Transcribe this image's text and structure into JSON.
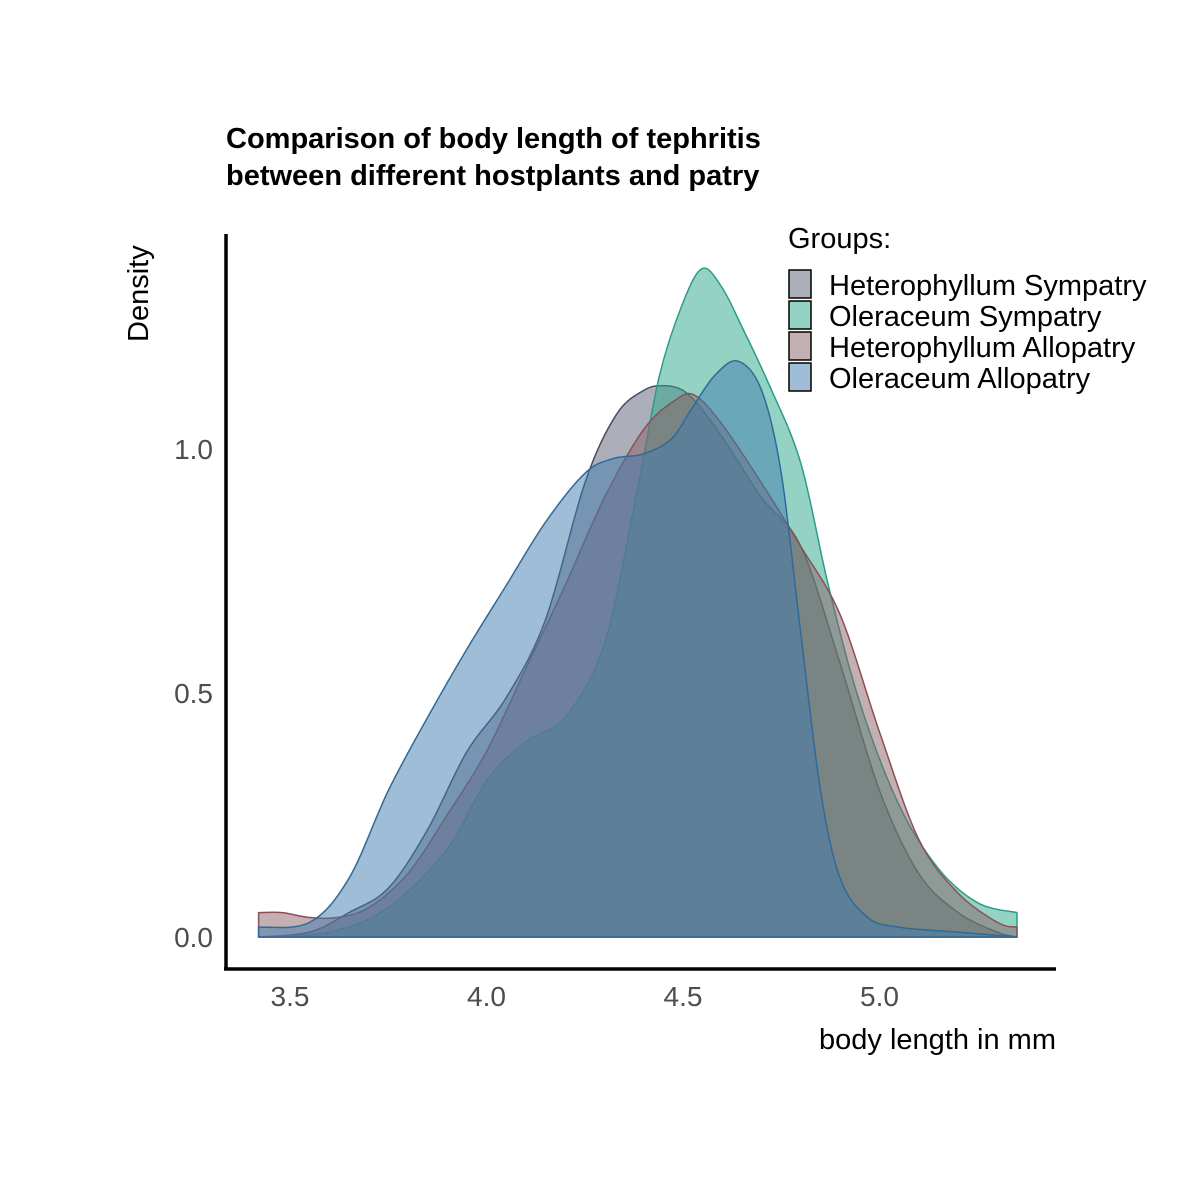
{
  "chart_data": {
    "type": "area",
    "title": [
      "Comparison of body length of tephritis",
      "between different hostplants and patry"
    ],
    "xlabel": "body length in mm",
    "ylabel": "Density",
    "xlim": [
      3.4,
      5.35
    ],
    "ylim": [
      0,
      1.36
    ],
    "x_ticks": [
      "3.5",
      "4.0",
      "4.5",
      "5.0"
    ],
    "y_ticks": [
      "0.0",
      "0.5",
      "1.0"
    ],
    "grid": false,
    "legend": {
      "title": "Groups:",
      "position": "top-right"
    },
    "series": [
      {
        "name": "Heterophyllum Sympatry",
        "fill": "#5a5e74",
        "stroke": "#4a4a60",
        "points": [
          [
            3.42,
            0.0
          ],
          [
            3.55,
            0.01
          ],
          [
            3.65,
            0.05
          ],
          [
            3.75,
            0.1
          ],
          [
            3.85,
            0.22
          ],
          [
            3.95,
            0.38
          ],
          [
            4.05,
            0.49
          ],
          [
            4.15,
            0.65
          ],
          [
            4.25,
            0.93
          ],
          [
            4.33,
            1.07
          ],
          [
            4.4,
            1.12
          ],
          [
            4.45,
            1.13
          ],
          [
            4.5,
            1.12
          ],
          [
            4.55,
            1.08
          ],
          [
            4.62,
            1.0
          ],
          [
            4.7,
            0.9
          ],
          [
            4.8,
            0.8
          ],
          [
            4.9,
            0.56
          ],
          [
            5.0,
            0.3
          ],
          [
            5.1,
            0.13
          ],
          [
            5.2,
            0.05
          ],
          [
            5.3,
            0.01
          ],
          [
            5.35,
            0.0
          ]
        ]
      },
      {
        "name": "Oleraceum Sympatry",
        "fill": "#2aa88a",
        "stroke": "#2a9d8a",
        "points": [
          [
            3.42,
            0.0
          ],
          [
            3.6,
            0.01
          ],
          [
            3.75,
            0.06
          ],
          [
            3.9,
            0.18
          ],
          [
            4.0,
            0.32
          ],
          [
            4.1,
            0.4
          ],
          [
            4.2,
            0.45
          ],
          [
            4.3,
            0.6
          ],
          [
            4.38,
            0.9
          ],
          [
            4.44,
            1.15
          ],
          [
            4.5,
            1.3
          ],
          [
            4.55,
            1.37
          ],
          [
            4.6,
            1.33
          ],
          [
            4.65,
            1.25
          ],
          [
            4.72,
            1.13
          ],
          [
            4.8,
            0.97
          ],
          [
            4.87,
            0.72
          ],
          [
            4.95,
            0.48
          ],
          [
            5.05,
            0.27
          ],
          [
            5.15,
            0.14
          ],
          [
            5.25,
            0.07
          ],
          [
            5.35,
            0.05
          ]
        ]
      },
      {
        "name": "Heterophyllum Allopatry",
        "fill": "#8a6066",
        "stroke": "#8a5058",
        "points": [
          [
            3.42,
            0.05
          ],
          [
            3.48,
            0.05
          ],
          [
            3.55,
            0.04
          ],
          [
            3.62,
            0.04
          ],
          [
            3.7,
            0.06
          ],
          [
            3.8,
            0.13
          ],
          [
            3.9,
            0.25
          ],
          [
            4.0,
            0.38
          ],
          [
            4.1,
            0.55
          ],
          [
            4.2,
            0.72
          ],
          [
            4.3,
            0.9
          ],
          [
            4.4,
            1.04
          ],
          [
            4.48,
            1.1
          ],
          [
            4.53,
            1.11
          ],
          [
            4.6,
            1.05
          ],
          [
            4.7,
            0.93
          ],
          [
            4.8,
            0.8
          ],
          [
            4.9,
            0.66
          ],
          [
            5.0,
            0.42
          ],
          [
            5.1,
            0.2
          ],
          [
            5.2,
            0.09
          ],
          [
            5.3,
            0.03
          ],
          [
            5.35,
            0.02
          ]
        ]
      },
      {
        "name": "Oleraceum Allopatry",
        "fill": "#3f7cae",
        "stroke": "#306a98",
        "points": [
          [
            3.42,
            0.02
          ],
          [
            3.55,
            0.03
          ],
          [
            3.65,
            0.12
          ],
          [
            3.75,
            0.3
          ],
          [
            3.85,
            0.45
          ],
          [
            3.95,
            0.59
          ],
          [
            4.05,
            0.72
          ],
          [
            4.15,
            0.85
          ],
          [
            4.25,
            0.95
          ],
          [
            4.32,
            0.98
          ],
          [
            4.4,
            0.99
          ],
          [
            4.47,
            1.02
          ],
          [
            4.52,
            1.08
          ],
          [
            4.58,
            1.15
          ],
          [
            4.64,
            1.18
          ],
          [
            4.7,
            1.12
          ],
          [
            4.75,
            0.95
          ],
          [
            4.8,
            0.62
          ],
          [
            4.85,
            0.3
          ],
          [
            4.9,
            0.12
          ],
          [
            4.97,
            0.04
          ],
          [
            5.05,
            0.02
          ],
          [
            5.2,
            0.01
          ],
          [
            5.35,
            0.0
          ]
        ]
      }
    ]
  }
}
